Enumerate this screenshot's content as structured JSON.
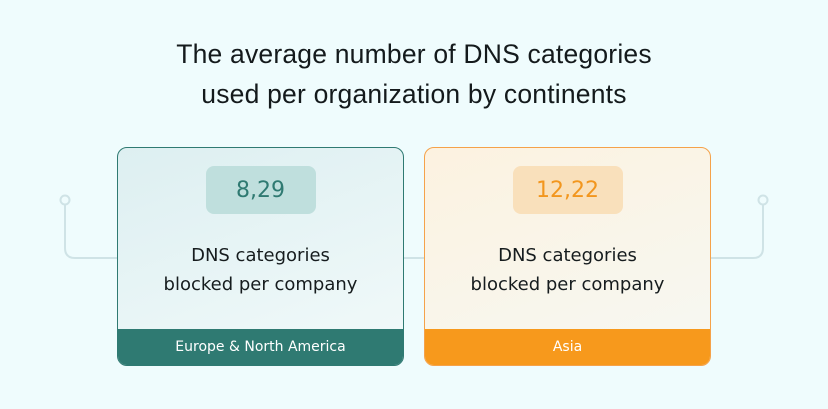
{
  "title": {
    "line1": "The average number of DNS categories",
    "line2": "used per organization by continents"
  },
  "cards": [
    {
      "value": "8,29",
      "desc_line1": "DNS categories",
      "desc_line2": "blocked per company",
      "region": "Europe & North America",
      "accent_color": "#2f7a72"
    },
    {
      "value": "12,22",
      "desc_line1": "DNS categories",
      "desc_line2": "blocked per company",
      "region": "Asia",
      "accent_color": "#f7991c"
    }
  ]
}
